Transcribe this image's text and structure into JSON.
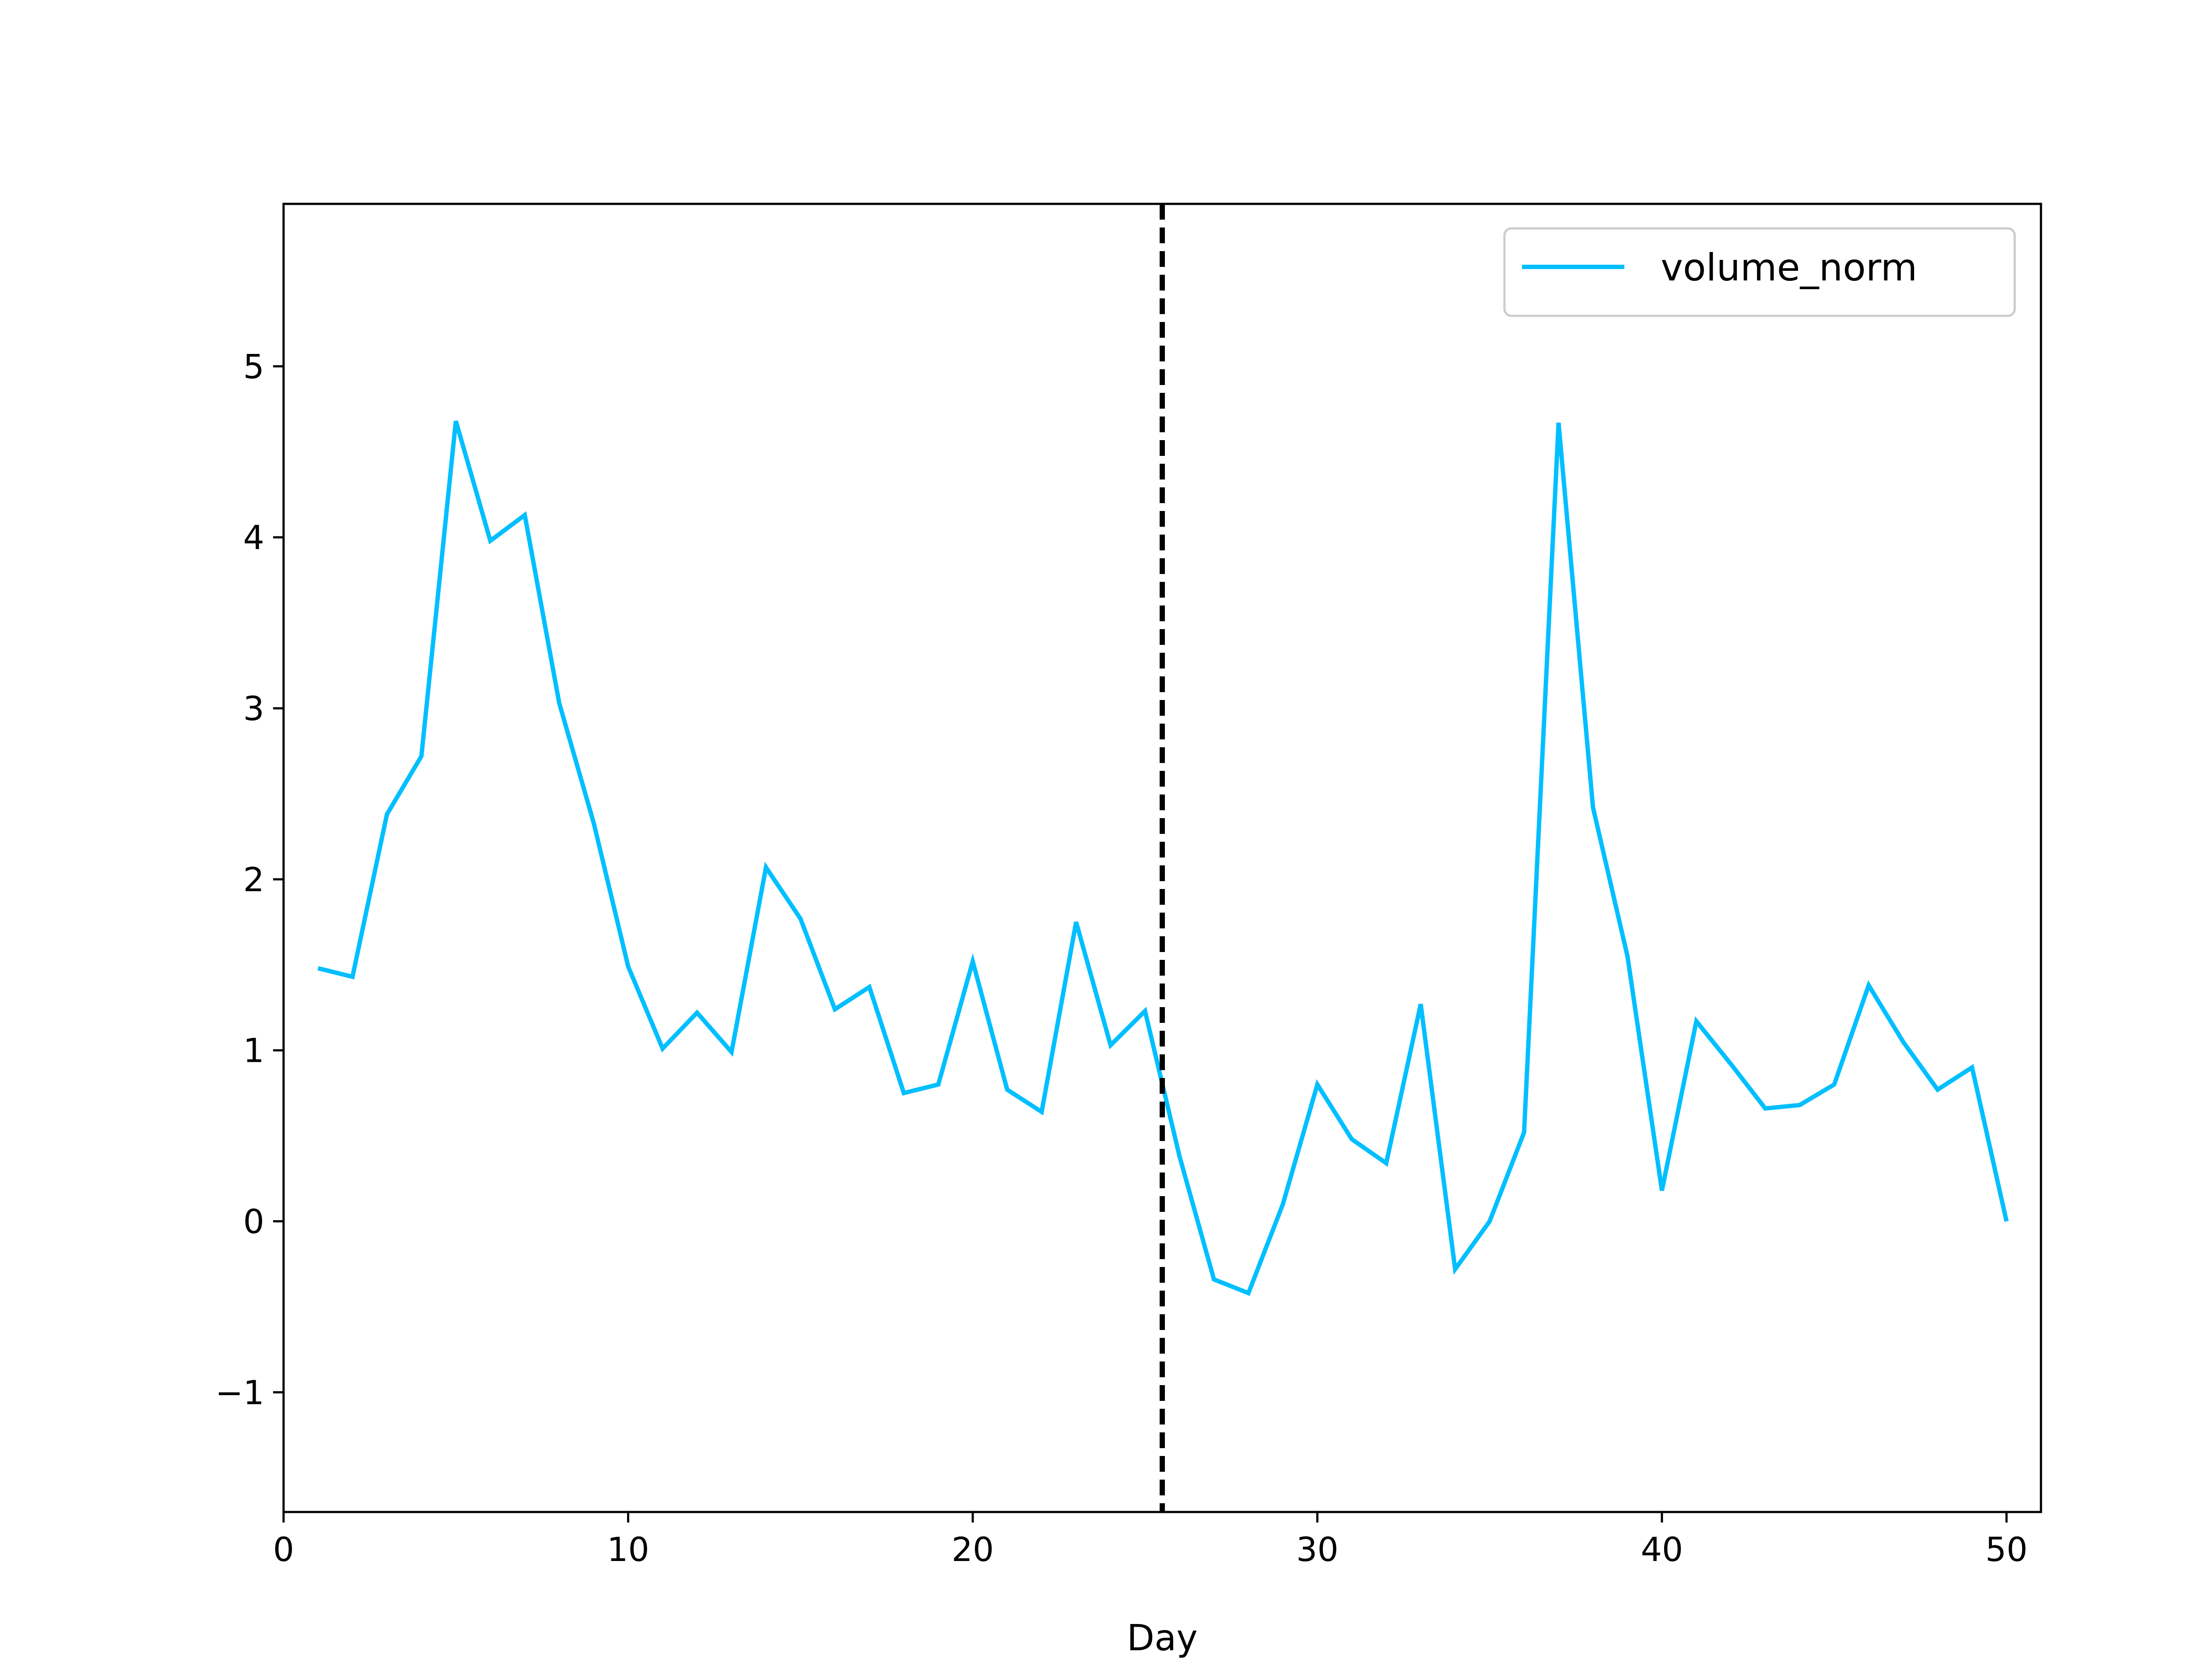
{
  "chart_data": {
    "type": "line",
    "title": "",
    "xlabel": "Day",
    "ylabel": "",
    "xlim": [
      0,
      51
    ],
    "ylim": [
      -1.7,
      5.95
    ],
    "xticks": [
      0,
      10,
      20,
      30,
      40,
      50
    ],
    "xtick_labels": [
      "0",
      "10",
      "20",
      "30",
      "40",
      "50"
    ],
    "yticks": [
      -1,
      0,
      1,
      2,
      3,
      4,
      5
    ],
    "ytick_labels": [
      "−1",
      "0",
      "1",
      "2",
      "3",
      "4",
      "5"
    ],
    "grid": false,
    "legend_position": "top-right",
    "vertical_marker": {
      "x": 25.5,
      "style": "dashed",
      "color": "#000000"
    },
    "series": [
      {
        "name": "volume_norm",
        "color": "#00BFFF",
        "x": [
          1,
          2,
          3,
          4,
          5,
          6,
          7,
          8,
          9,
          10,
          11,
          12,
          13,
          14,
          15,
          16,
          17,
          18,
          19,
          20,
          21,
          22,
          23,
          24,
          25,
          26,
          27,
          28,
          29,
          30,
          31,
          32,
          33,
          34,
          35,
          36,
          37,
          38,
          39,
          40,
          41,
          42,
          43,
          44,
          45,
          46,
          47,
          48,
          49,
          50
        ],
        "y": [
          1.48,
          1.43,
          2.38,
          2.72,
          4.68,
          3.98,
          4.13,
          3.03,
          2.33,
          1.49,
          1.01,
          1.22,
          0.99,
          2.07,
          1.77,
          1.24,
          1.37,
          0.75,
          0.8,
          1.52,
          0.77,
          0.64,
          1.75,
          1.03,
          1.23,
          0.38,
          -0.34,
          -0.42,
          0.1,
          0.8,
          0.48,
          0.34,
          1.27,
          -0.28,
          0.0,
          0.52,
          4.67,
          2.42,
          1.55,
          0.18,
          1.17,
          0.92,
          0.66,
          0.68,
          0.8,
          1.38,
          1.05,
          0.77,
          0.9,
          0.0
        ]
      }
    ]
  }
}
